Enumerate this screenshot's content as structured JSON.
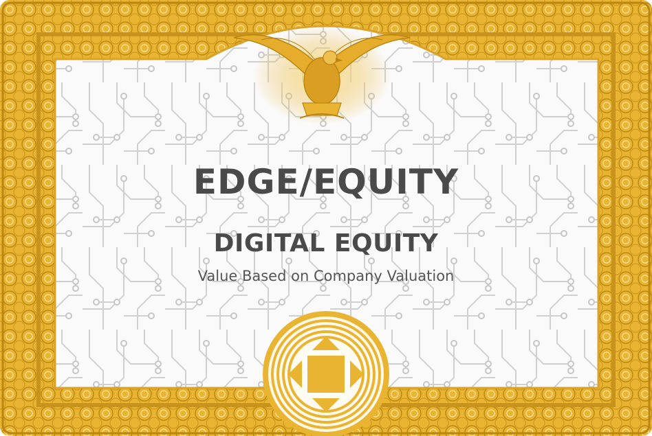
{
  "certificate": {
    "title": "EDGE/EQUITY",
    "subtitle": "DIGITAL EQUITY",
    "tagline": "Value Based on Company Valuation"
  },
  "colors": {
    "gold": "#e8b02e",
    "gold_dark": "#b88410",
    "gold_light": "#f7d97a",
    "text": "#4a4a4a",
    "circuit": "#d2d2d2",
    "background": "#fafafa"
  },
  "icons": [
    "eagle-emblem",
    "gold-seal-icon"
  ]
}
